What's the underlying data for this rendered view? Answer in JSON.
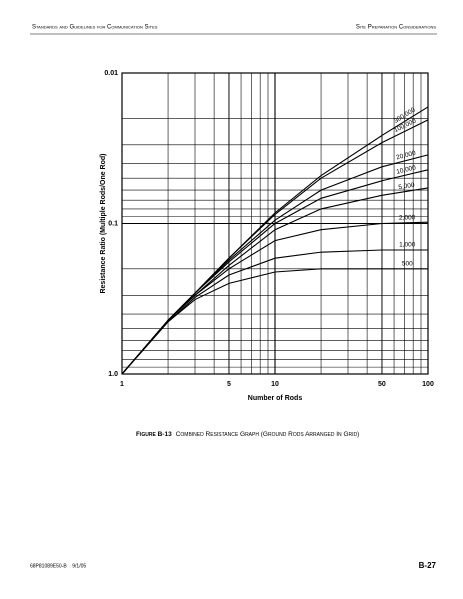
{
  "header": {
    "left": "Standards and Guidelines for Communication Sites",
    "right": "Site Preparation Considerations"
  },
  "chart_data": {
    "type": "line",
    "xlabel": "Number of Rods",
    "ylabel": "Resistance Ratio (Multiple Rods/One Rod)",
    "x": [
      1,
      2,
      3,
      5,
      10,
      20,
      50,
      100
    ],
    "xlim": [
      1,
      100
    ],
    "ylim": [
      1,
      0.01
    ],
    "xticks": [
      1,
      5,
      10,
      50,
      100
    ],
    "yticks": [
      0.01,
      0.1,
      {
        "value": 1,
        "label": "1.0"
      }
    ],
    "log_x": true,
    "log_y": true,
    "grid": true,
    "series": [
      {
        "name": "300,000",
        "color": "#000000",
        "values": [
          1,
          0.44,
          0.29,
          0.17,
          0.085,
          0.048,
          0.026,
          0.0168
        ]
      },
      {
        "name": "100,000",
        "color": "#000000",
        "values": [
          1,
          0.44,
          0.29,
          0.17,
          0.087,
          0.05,
          0.029,
          0.0205
        ]
      },
      {
        "name": "20,000",
        "color": "#000000",
        "values": [
          1,
          0.44,
          0.29,
          0.175,
          0.095,
          0.06,
          0.042,
          0.035
        ]
      },
      {
        "name": "10,000",
        "color": "#000000",
        "values": [
          1,
          0.44,
          0.29,
          0.18,
          0.1,
          0.068,
          0.052,
          0.044
        ]
      },
      {
        "name": "5,000",
        "color": "#000000",
        "values": [
          1,
          0.44,
          0.3,
          0.19,
          0.11,
          0.08,
          0.065,
          0.058
        ]
      },
      {
        "name": "2,000",
        "color": "#000000",
        "values": [
          1,
          0.44,
          0.3,
          0.2,
          0.13,
          0.11,
          0.1,
          0.098
        ]
      },
      {
        "name": "1,000",
        "color": "#000000",
        "values": [
          1,
          0.45,
          0.31,
          0.22,
          0.17,
          0.155,
          0.15,
          0.15
        ]
      },
      {
        "name": "500",
        "color": "#000000",
        "values": [
          1,
          0.45,
          0.32,
          0.25,
          0.21,
          0.2,
          0.2,
          0.2
        ]
      }
    ]
  },
  "caption": {
    "label": "Figure B-13",
    "text": "Combined Resistance Graph (Ground Rods Arranged In Grid)"
  },
  "footer": {
    "left": "68P81089E50-B    9/1/05",
    "right": "B-27"
  }
}
